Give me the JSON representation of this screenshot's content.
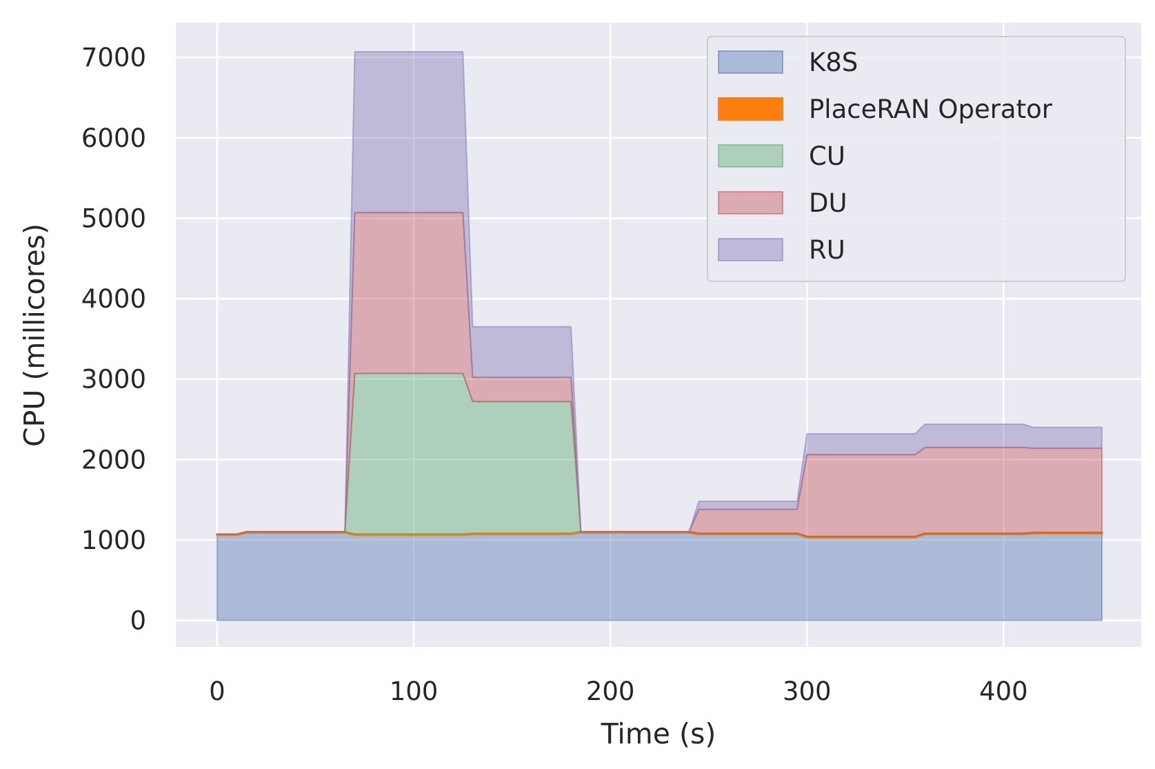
{
  "chart_data": {
    "type": "area",
    "stacked": true,
    "xlabel": "Time (s)",
    "ylabel": "CPU (millicores)",
    "xlim": [
      -21,
      470
    ],
    "ylim": [
      -330,
      7430
    ],
    "xticks": [
      0,
      100,
      200,
      300,
      400
    ],
    "yticks": [
      0,
      1000,
      2000,
      3000,
      4000,
      5000,
      6000,
      7000
    ],
    "grid": true,
    "legend_position": "top-right",
    "x": [
      0,
      10,
      15,
      65,
      70,
      125,
      130,
      180,
      185,
      240,
      245,
      295,
      300,
      355,
      360,
      410,
      415,
      450
    ],
    "series": [
      {
        "name": "K8S",
        "color": "#4c72b0",
        "values": [
          1060,
          1060,
          1090,
          1090,
          1060,
          1060,
          1070,
          1070,
          1090,
          1090,
          1070,
          1070,
          1030,
          1030,
          1070,
          1070,
          1080,
          1080
        ]
      },
      {
        "name": "PlaceRAN Operator",
        "color": "#ff7f0e",
        "values": [
          10,
          10,
          10,
          10,
          10,
          10,
          10,
          10,
          10,
          10,
          10,
          10,
          10,
          10,
          10,
          10,
          10,
          10
        ]
      },
      {
        "name": "CU",
        "color": "#55a868",
        "values": [
          0,
          0,
          0,
          0,
          2000,
          2000,
          1640,
          1640,
          0,
          0,
          0,
          0,
          0,
          0,
          0,
          0,
          0,
          0
        ]
      },
      {
        "name": "DU",
        "color": "#c44e52",
        "values": [
          0,
          0,
          0,
          0,
          2000,
          2000,
          300,
          300,
          0,
          0,
          300,
          300,
          1020,
          1020,
          1070,
          1070,
          1050,
          1050
        ]
      },
      {
        "name": "RU",
        "color": "#8172b3",
        "values": [
          0,
          0,
          0,
          0,
          2000,
          2000,
          630,
          630,
          0,
          0,
          100,
          100,
          260,
          260,
          290,
          290,
          260,
          260
        ]
      }
    ]
  }
}
